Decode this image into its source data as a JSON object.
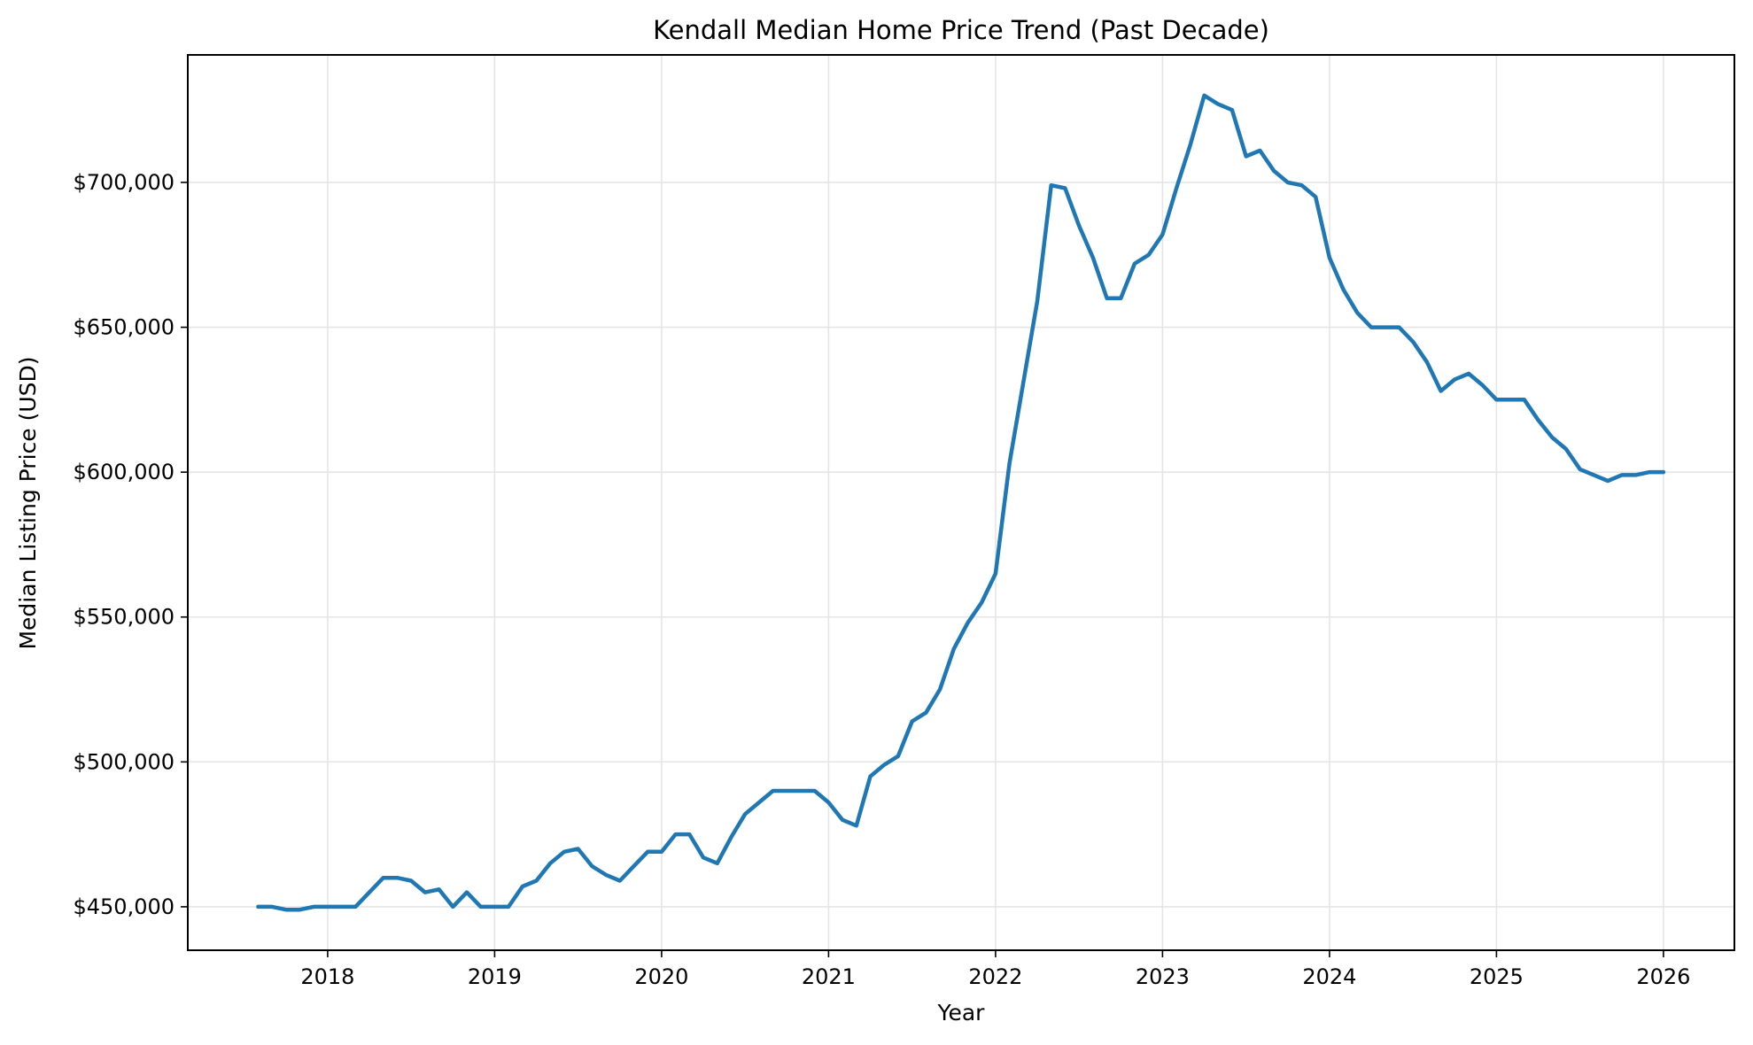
{
  "chart_data": {
    "type": "line",
    "title": "Kendall Median Home Price Trend (Past Decade)",
    "xlabel": "Year",
    "ylabel": "Median Listing Price (USD)",
    "legend": "none",
    "grid": true,
    "line_color": "#1f77b4",
    "grid_color": "#e5e5e5",
    "axis_color": "#000000",
    "start_month": "2017-08",
    "frequency": "monthly",
    "values_usd": [
      450000,
      450000,
      449000,
      449000,
      450000,
      450000,
      450000,
      450000,
      455000,
      460000,
      460000,
      459000,
      455000,
      456000,
      450000,
      455000,
      450000,
      450000,
      450000,
      457000,
      459000,
      465000,
      469000,
      470000,
      464000,
      461000,
      459000,
      464000,
      469000,
      469000,
      475000,
      475000,
      467000,
      465000,
      474000,
      482000,
      486000,
      490000,
      490000,
      490000,
      490000,
      486000,
      480000,
      478000,
      495000,
      499000,
      502000,
      514000,
      517000,
      525000,
      539000,
      548000,
      555000,
      565000,
      603000,
      631000,
      659000,
      699000,
      698000,
      685000,
      674000,
      660000,
      660000,
      672000,
      675000,
      682000,
      698000,
      713000,
      730000,
      727000,
      725000,
      709000,
      711000,
      704000,
      700000,
      699000,
      695000,
      674000,
      663000,
      655000,
      650000,
      650000,
      650000,
      645000,
      638000,
      628000,
      632000,
      634000,
      630000,
      625000,
      625000,
      625000,
      618000,
      612000,
      608000,
      601000,
      599000,
      597000,
      599000,
      599000,
      600000,
      600000
    ],
    "x_tick_labels": [
      "2018",
      "2019",
      "2020",
      "2021",
      "2022",
      "2023",
      "2024",
      "2025",
      "2026"
    ],
    "x_tick_month_indices": [
      5,
      17,
      29,
      41,
      53,
      65,
      77,
      89,
      101
    ],
    "y_tick_labels": [
      "$450,000",
      "$500,000",
      "$550,000",
      "$600,000",
      "$650,000",
      "$700,000"
    ],
    "y_tick_values": [
      450000,
      500000,
      550000,
      600000,
      650000,
      700000
    ],
    "ylim_usd": [
      435000,
      744000
    ],
    "legend_position": "none"
  }
}
